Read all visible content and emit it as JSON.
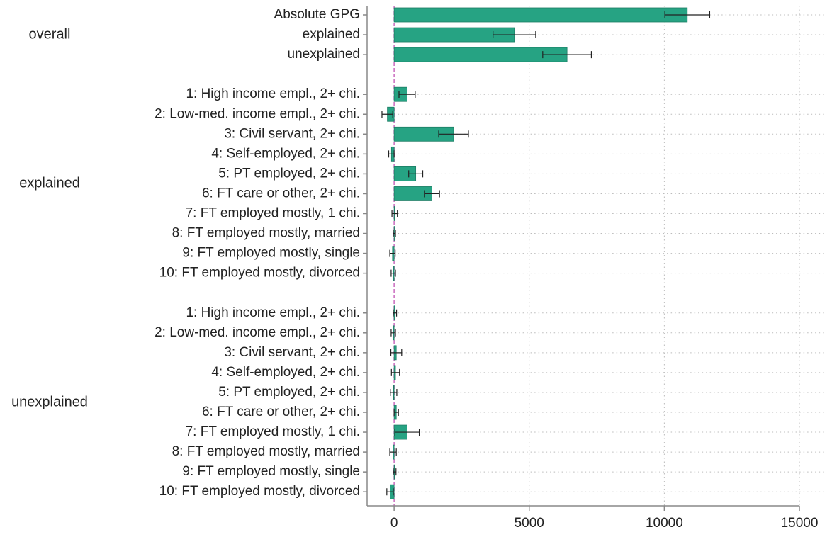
{
  "chart_data": {
    "type": "bar",
    "orientation": "horizontal",
    "color": "#26a383",
    "grid": true,
    "groups": [
      {
        "name": "overall",
        "categories": [
          "Absolute GPG",
          "explained",
          "unexplained"
        ],
        "values": [
          10850,
          4450,
          6400
        ],
        "errors": [
          830,
          790,
          900
        ]
      },
      {
        "name": "explained",
        "categories": [
          "1: High income empl., 2+ chi.",
          "2: Low-med. income empl., 2+ chi.",
          "3: Civil servant, 2+ chi.",
          "4: Self-employed, 2+ chi.",
          "5: PT employed, 2+ chi.",
          "6: FT care or other, 2+ chi.",
          "7: FT employed mostly, 1 chi.",
          "8: FT employed mostly, married",
          "9: FT employed mostly, single",
          "10: FT employed mostly, divorced"
        ],
        "values": [
          480,
          -250,
          2200,
          -100,
          800,
          1400,
          20,
          10,
          -60,
          -30
        ],
        "errors": [
          300,
          200,
          550,
          100,
          260,
          280,
          100,
          40,
          100,
          80
        ]
      },
      {
        "name": "unexplained",
        "categories": [
          "1: High income empl., 2+ chi.",
          "2: Low-med. income empl., 2+ chi.",
          "3: Civil servant, 2+ chi.",
          "4: Self-employed, 2+ chi.",
          "5: PT employed, 2+ chi.",
          "6: FT care or other, 2+ chi.",
          "7: FT employed mostly, 1 chi.",
          "8: FT employed mostly, married",
          "9: FT employed mostly, single",
          "10: FT employed mostly, divorced"
        ],
        "values": [
          30,
          -30,
          80,
          50,
          -20,
          80,
          480,
          -40,
          20,
          -150
        ],
        "errors": [
          60,
          80,
          200,
          150,
          120,
          80,
          450,
          120,
          50,
          120
        ]
      }
    ],
    "xlim": [
      -1000,
      15000
    ],
    "xticks": [
      0,
      5000,
      10000,
      15000
    ]
  }
}
